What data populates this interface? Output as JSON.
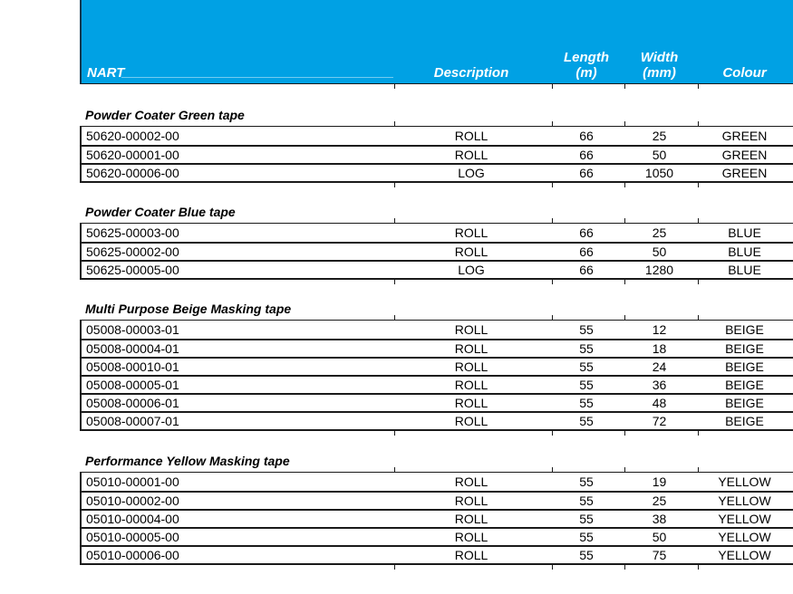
{
  "colors": {
    "header_background": "#00A1E4",
    "header_text": "#FFFFFF",
    "table_border": "#1A1A1A"
  },
  "header": {
    "nart": "NART",
    "description": "Description",
    "length_line1": "Length",
    "length_line2": "(m)",
    "width_line1": "Width",
    "width_line2": "(mm)",
    "colour": "Colour"
  },
  "sections": [
    {
      "title": "Powder Coater Green tape",
      "rows": [
        {
          "nart": "50620-00002-00",
          "description": "ROLL",
          "length_m": "66",
          "width_mm": "25",
          "colour": "GREEN"
        },
        {
          "nart": "50620-00001-00",
          "description": "ROLL",
          "length_m": "66",
          "width_mm": "50",
          "colour": "GREEN"
        },
        {
          "nart": "50620-00006-00",
          "description": "LOG",
          "length_m": "66",
          "width_mm": "1050",
          "colour": "GREEN"
        }
      ]
    },
    {
      "title": "Powder Coater Blue tape",
      "rows": [
        {
          "nart": "50625-00003-00",
          "description": "ROLL",
          "length_m": "66",
          "width_mm": "25",
          "colour": "BLUE"
        },
        {
          "nart": "50625-00002-00",
          "description": "ROLL",
          "length_m": "66",
          "width_mm": "50",
          "colour": "BLUE"
        },
        {
          "nart": "50625-00005-00",
          "description": "LOG",
          "length_m": "66",
          "width_mm": "1280",
          "colour": "BLUE"
        }
      ]
    },
    {
      "title": "Multi Purpose Beige Masking tape",
      "rows": [
        {
          "nart": "05008-00003-01",
          "description": "ROLL",
          "length_m": "55",
          "width_mm": "12",
          "colour": "BEIGE"
        },
        {
          "nart": "05008-00004-01",
          "description": "ROLL",
          "length_m": "55",
          "width_mm": "18",
          "colour": "BEIGE"
        },
        {
          "nart": "05008-00010-01",
          "description": "ROLL",
          "length_m": "55",
          "width_mm": "24",
          "colour": "BEIGE"
        },
        {
          "nart": "05008-00005-01",
          "description": "ROLL",
          "length_m": "55",
          "width_mm": "36",
          "colour": "BEIGE"
        },
        {
          "nart": "05008-00006-01",
          "description": "ROLL",
          "length_m": "55",
          "width_mm": "48",
          "colour": "BEIGE"
        },
        {
          "nart": "05008-00007-01",
          "description": "ROLL",
          "length_m": "55",
          "width_mm": "72",
          "colour": "BEIGE"
        }
      ]
    },
    {
      "title": "Performance Yellow Masking tape",
      "rows": [
        {
          "nart": "05010-00001-00",
          "description": "ROLL",
          "length_m": "55",
          "width_mm": "19",
          "colour": "YELLOW"
        },
        {
          "nart": "05010-00002-00",
          "description": "ROLL",
          "length_m": "55",
          "width_mm": "25",
          "colour": "YELLOW"
        },
        {
          "nart": "05010-00004-00",
          "description": "ROLL",
          "length_m": "55",
          "width_mm": "38",
          "colour": "YELLOW"
        },
        {
          "nart": "05010-00005-00",
          "description": "ROLL",
          "length_m": "55",
          "width_mm": "50",
          "colour": "YELLOW"
        },
        {
          "nart": "05010-00006-00",
          "description": "ROLL",
          "length_m": "55",
          "width_mm": "75",
          "colour": "YELLOW"
        }
      ]
    }
  ]
}
